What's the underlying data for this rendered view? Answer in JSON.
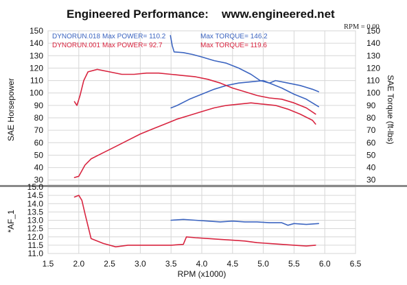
{
  "header": {
    "title_left": "Engineered Performance:",
    "title_right": "www.engineered.net",
    "rpm_readout": "RPM = 0.00"
  },
  "colors": {
    "blue": "#3b64c0",
    "red": "#d8243f",
    "grid": "#d6d6d6",
    "divider": "#888888"
  },
  "legend": {
    "run1": {
      "name": "DYNORUN.018",
      "max_power": "Max POWER= 110.2",
      "max_torque": "Max TORQUE= 146.2",
      "color": "#3b64c0"
    },
    "run2": {
      "name": "DYNORUN.001",
      "max_power": "Max POWER= 92.7",
      "max_torque": "Max TORQUE= 119.6",
      "color": "#d8243f"
    }
  },
  "chart_data": [
    {
      "type": "line",
      "panel": "power-torque",
      "xlabel": "RPM (x1000)",
      "ylabel": "SAE Horsepower",
      "y2label": "SAE Torque (ft-lbs)",
      "xlim": [
        1.5,
        6.5
      ],
      "ylim": [
        26,
        150
      ],
      "y2lim": [
        26,
        150
      ],
      "yticks": [
        150,
        140,
        130,
        120,
        110,
        100,
        90,
        80,
        70,
        60,
        50,
        40,
        30
      ],
      "yticks_right": [
        150,
        140,
        130,
        120,
        110,
        100,
        90,
        80,
        70,
        60,
        50,
        40,
        30
      ],
      "grid": true,
      "series": [
        {
          "name": "DYNORUN.018",
          "measure": "torque",
          "color": "#3b64c0",
          "x": [
            3.49,
            3.52,
            3.55,
            3.7,
            3.85,
            4.0,
            4.2,
            4.4,
            4.6,
            4.8,
            4.95,
            5.1,
            5.3,
            5.5,
            5.7,
            5.9
          ],
          "y": [
            146.2,
            138,
            133,
            132.5,
            131,
            129,
            126,
            124,
            120,
            115,
            110,
            108,
            104,
            99,
            95,
            89
          ]
        },
        {
          "name": "DYNORUN.018",
          "measure": "power",
          "color": "#3b64c0",
          "x": [
            3.5,
            3.6,
            3.8,
            4.0,
            4.2,
            4.4,
            4.6,
            4.8,
            5.0,
            5.1,
            5.2,
            5.4,
            5.6,
            5.8,
            5.9
          ],
          "y": [
            88,
            90,
            95,
            99,
            103,
            106,
            108,
            109,
            110,
            108,
            110,
            108,
            106,
            103,
            101
          ]
        },
        {
          "name": "DYNORUN.001",
          "measure": "torque",
          "color": "#d8243f",
          "x": [
            1.93,
            1.97,
            2.02,
            2.08,
            2.15,
            2.3,
            2.5,
            2.7,
            2.9,
            3.1,
            3.3,
            3.5,
            3.7,
            3.9,
            4.1,
            4.3,
            4.5,
            4.7,
            4.9,
            5.1,
            5.3,
            5.5,
            5.7,
            5.85
          ],
          "y": [
            93,
            90,
            98,
            110,
            117,
            119,
            117,
            115,
            115,
            116,
            116,
            115,
            114,
            113,
            111,
            108,
            104,
            101,
            98,
            96,
            95,
            92,
            88,
            83
          ]
        },
        {
          "name": "DYNORUN.001",
          "measure": "power",
          "color": "#d8243f",
          "x": [
            1.93,
            2.0,
            2.1,
            2.2,
            2.4,
            2.6,
            2.8,
            3.0,
            3.2,
            3.4,
            3.6,
            3.8,
            4.0,
            4.2,
            4.4,
            4.6,
            4.8,
            5.0,
            5.2,
            5.4,
            5.6,
            5.8,
            5.85
          ],
          "y": [
            32,
            33,
            42,
            47,
            52,
            57,
            62,
            67,
            71,
            75,
            79,
            82,
            85,
            88,
            90,
            91,
            92,
            91,
            90,
            87,
            83,
            78,
            75
          ]
        }
      ]
    },
    {
      "type": "line",
      "panel": "air-fuel",
      "xlabel": "RPM (x1000)",
      "ylabel": "*AF_1",
      "xlim": [
        1.5,
        6.5
      ],
      "xticks": [
        1.5,
        2.0,
        2.5,
        3.0,
        3.5,
        4.0,
        4.5,
        5.0,
        5.5,
        6.0,
        6.5
      ],
      "ylim": [
        11.0,
        15.0
      ],
      "yticks": [
        15.0,
        14.5,
        14.0,
        13.5,
        13.0,
        12.5,
        12.0,
        11.5,
        11.0
      ],
      "grid": true,
      "series": [
        {
          "name": "DYNORUN.018",
          "color": "#3b64c0",
          "x": [
            3.5,
            3.7,
            3.9,
            4.1,
            4.3,
            4.5,
            4.7,
            4.85,
            4.9,
            5.1,
            5.3,
            5.4,
            5.5,
            5.7,
            5.9
          ],
          "y": [
            13.0,
            13.05,
            13.0,
            12.95,
            12.9,
            12.95,
            12.9,
            12.9,
            12.9,
            12.85,
            12.85,
            12.7,
            12.8,
            12.75,
            12.8
          ]
        },
        {
          "name": "DYNORUN.001",
          "color": "#d8243f",
          "x": [
            1.93,
            2.0,
            2.05,
            2.1,
            2.2,
            2.4,
            2.6,
            2.8,
            3.0,
            3.2,
            3.5,
            3.7,
            3.75,
            3.9,
            4.1,
            4.3,
            4.5,
            4.7,
            4.9,
            5.1,
            5.3,
            5.5,
            5.7,
            5.85
          ],
          "y": [
            14.4,
            14.5,
            14.2,
            13.4,
            11.9,
            11.6,
            11.4,
            11.5,
            11.5,
            11.5,
            11.5,
            11.55,
            12.0,
            11.95,
            11.9,
            11.85,
            11.8,
            11.75,
            11.65,
            11.6,
            11.55,
            11.5,
            11.45,
            11.5
          ]
        }
      ]
    }
  ]
}
